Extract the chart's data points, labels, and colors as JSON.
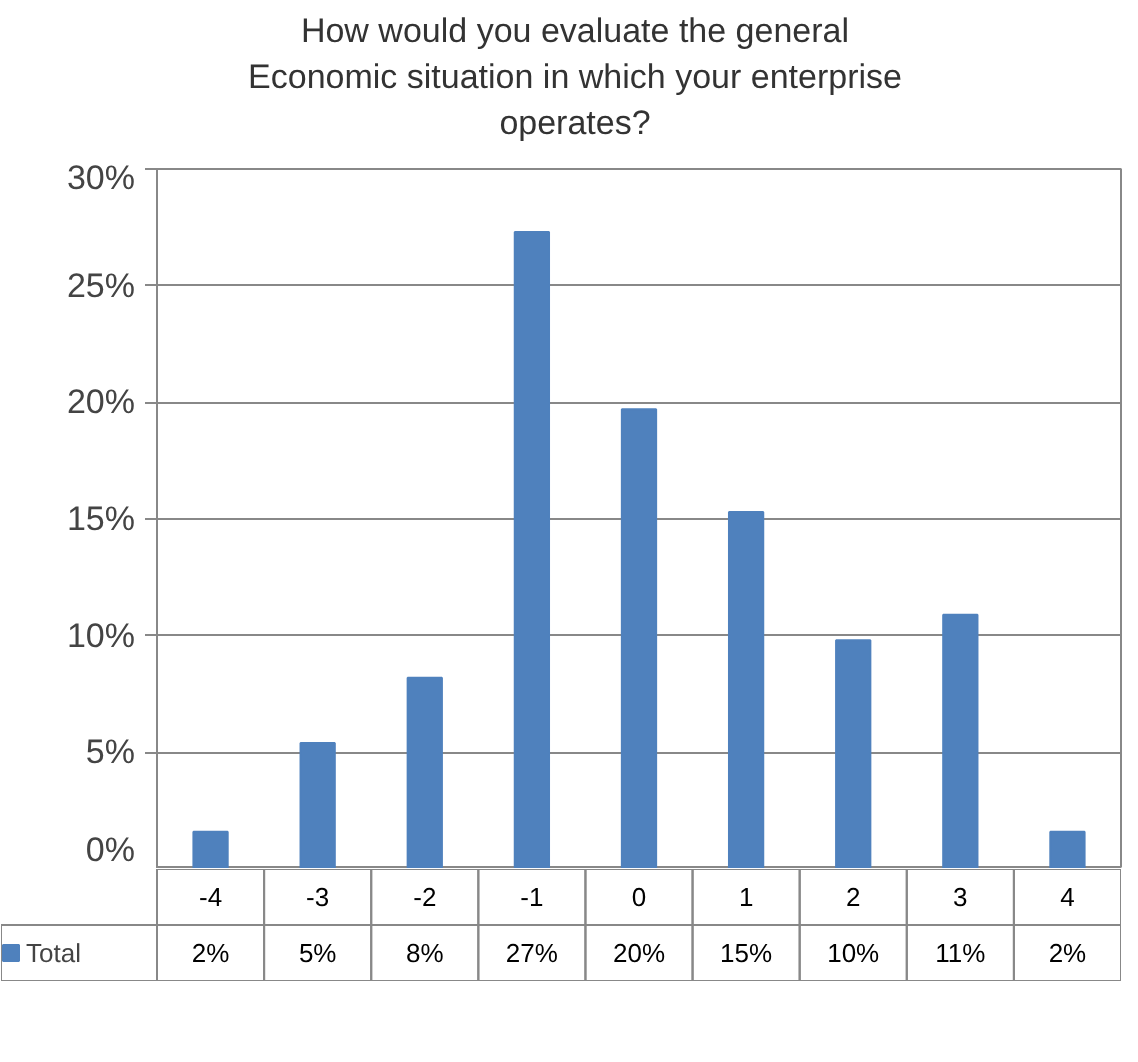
{
  "chart_data": {
    "type": "bar",
    "title": "How would you evaluate the general\nEconomic situation in which your enterprise\noperates?",
    "categories": [
      "-4",
      "-3",
      "-2",
      "-1",
      "0",
      "1",
      "2",
      "3",
      "4"
    ],
    "series": [
      {
        "name": "Total",
        "color": "#4f81bd",
        "values": [
          1.6,
          5.4,
          8.2,
          27.3,
          19.7,
          15.3,
          9.8,
          10.9,
          1.6
        ],
        "value_labels": [
          "2%",
          "5%",
          "8%",
          "27%",
          "20%",
          "15%",
          "10%",
          "11%",
          "2%"
        ]
      }
    ],
    "ylim": [
      0,
      30
    ],
    "yticks": [
      {
        "value": 0,
        "label": "0%"
      },
      {
        "value": 5,
        "label": "5%"
      },
      {
        "value": 10,
        "label": "10%"
      },
      {
        "value": 15,
        "label": "15%"
      },
      {
        "value": 20,
        "label": "20%"
      },
      {
        "value": 25,
        "label": "25%"
      },
      {
        "value": 30,
        "label": "30%"
      }
    ],
    "grid": "y",
    "legend": "bottom"
  }
}
